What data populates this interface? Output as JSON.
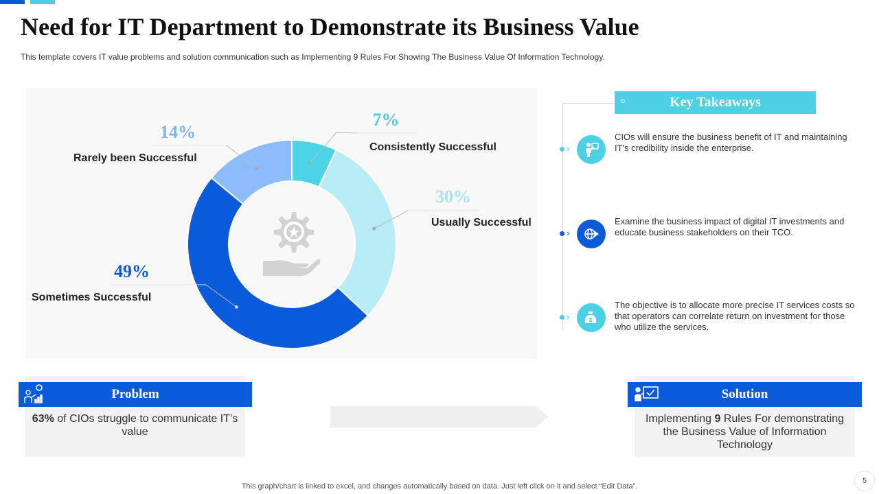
{
  "header": {
    "title": "Need for IT Department to Demonstrate its Business Value",
    "subtitle": "This template covers IT value problems and solution communication such as Implementing 9 Rules For Showing The Business Value Of Information Technology."
  },
  "chart_data": {
    "type": "pie",
    "variant": "donut",
    "title": "",
    "slices": [
      {
        "label": "Consistently Successful",
        "value": 7,
        "display": "7%",
        "color": "#4dd4e6",
        "pct_color": "#4cc9e0"
      },
      {
        "label": "Usually Successful",
        "value": 30,
        "display": "30%",
        "color": "#b7ecf4",
        "pct_color": "#a9e3ee"
      },
      {
        "label": "Sometimes Successful",
        "value": 49,
        "display": "49%",
        "color": "#0a5bd9",
        "pct_color": "#0a5bd9"
      },
      {
        "label": "Rarely been Successful",
        "value": 14,
        "display": "14%",
        "color": "#8cbcfb",
        "pct_color": "#7fb3ef"
      }
    ],
    "center_icon": "gear-hand-icon"
  },
  "takeaways": {
    "header": "Key Takeaways",
    "items": [
      {
        "text": "CIOs will ensure the business benefit of IT and maintaining IT's credibility inside the enterprise.",
        "icon": "person-presenting-icon",
        "color": "#4cd0e3"
      },
      {
        "text": "Examine the business impact of digital IT investments and educate business stakeholders on their TCO.",
        "icon": "globe-arrow-icon",
        "color": "#0a5bd9"
      },
      {
        "text": "The objective is to allocate more precise IT services costs so that operators can correlate return on investment for those who utilize the services.",
        "icon": "money-bag-icon",
        "color": "#4cd0e3"
      }
    ]
  },
  "problem": {
    "title": "Problem",
    "stat": "63%",
    "text": " of CIOs struggle to communicate IT’s value"
  },
  "solution": {
    "title": "Solution",
    "text_before": "Implementing ",
    "number": "9",
    "text_after": " Rules For demonstrating the Business Value of Information Technology"
  },
  "footer": {
    "note": "This graph/chart is linked to excel,  and changes automatically based on data. Just left click on it and select “Edit Data”.",
    "page": "5"
  },
  "colors": {
    "accent_blue": "#0a5bd9",
    "accent_cyan": "#4cd0e3",
    "panel_gray": "#f2f2f2"
  }
}
